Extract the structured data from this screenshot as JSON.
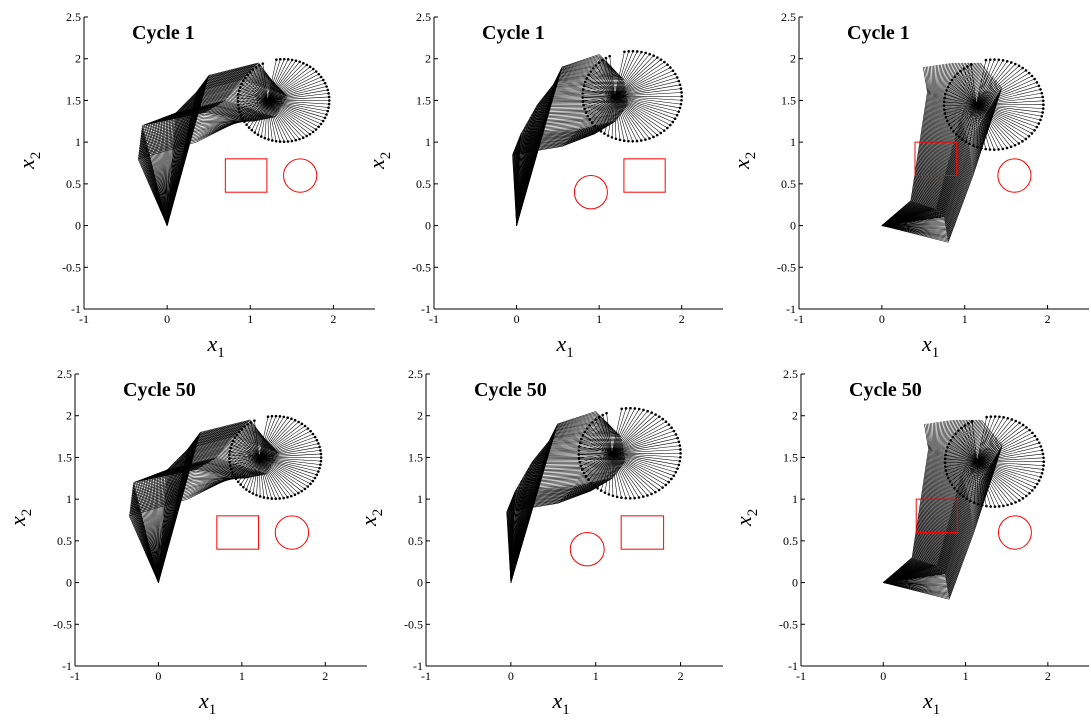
{
  "chart_data": [
    {
      "type": "line",
      "title": "Cycle 1",
      "xlabel": "x",
      "xlabel_sub": "1",
      "ylabel": "x",
      "ylabel_sub": "2",
      "xlim": [
        -1,
        2.5
      ],
      "ylim": [
        -1,
        2.5
      ],
      "xticks": [
        "-1",
        "0",
        "1",
        "2"
      ],
      "yticks": [
        "-1",
        "-0.5",
        "0",
        "0.5",
        "1",
        "1.5",
        "2",
        "2.5"
      ],
      "obstacle_color": "#ff0000",
      "obstacles": [
        {
          "shape": "square",
          "cx": 0.95,
          "cy": 0.6,
          "w": 0.5,
          "h": 0.4
        },
        {
          "shape": "circle",
          "cx": 1.6,
          "cy": 0.6,
          "r": 0.2
        }
      ],
      "links": [
        {
          "name": "link-1",
          "from": [
            [
              0.0,
              0.0
            ],
            [
              0.0,
              0.0
            ],
            [
              0.0,
              0.0
            ],
            [
              0.0,
              0.0
            ],
            [
              0.0,
              0.0
            ]
          ],
          "to": [
            [
              -0.35,
              0.8
            ],
            [
              -0.3,
              1.2
            ],
            [
              0.1,
              1.35
            ],
            [
              0.35,
              1.6
            ],
            [
              0.5,
              1.8
            ]
          ]
        },
        {
          "name": "link-2",
          "from": [
            [
              -0.35,
              0.8
            ],
            [
              -0.3,
              1.2
            ],
            [
              0.1,
              1.35
            ],
            [
              0.35,
              1.6
            ],
            [
              0.5,
              1.8
            ]
          ],
          "to": [
            [
              0.35,
              1.0
            ],
            [
              0.45,
              1.35
            ],
            [
              0.7,
              1.5
            ],
            [
              0.9,
              1.75
            ],
            [
              1.1,
              1.95
            ]
          ]
        },
        {
          "name": "link-3",
          "from": [
            [
              0.35,
              1.0
            ],
            [
              0.45,
              1.35
            ],
            [
              0.7,
              1.5
            ],
            [
              0.9,
              1.75
            ],
            [
              1.1,
              1.95
            ]
          ],
          "to": [
            [
              0.85,
              1.25
            ],
            [
              1.05,
              1.25
            ],
            [
              1.3,
              1.3
            ],
            [
              1.45,
              1.55
            ],
            [
              1.25,
              1.75
            ]
          ]
        }
      ],
      "end_circle": {
        "cx": 1.4,
        "cy": 1.5,
        "r": 0.55
      },
      "n_frames": 80
    },
    {
      "type": "line",
      "title": "Cycle 1",
      "xlabel": "x",
      "xlabel_sub": "1",
      "ylabel": "x",
      "ylabel_sub": "2",
      "xlim": [
        -1,
        2.5
      ],
      "ylim": [
        -1,
        2.5
      ],
      "xticks": [
        "-1",
        "0",
        "1",
        "2"
      ],
      "yticks": [
        "-1",
        "-0.5",
        "0",
        "0.5",
        "1",
        "1.5",
        "2",
        "2.5"
      ],
      "obstacle_color": "#ff0000",
      "obstacles": [
        {
          "shape": "circle",
          "cx": 0.9,
          "cy": 0.4,
          "r": 0.2
        },
        {
          "shape": "square",
          "cx": 1.55,
          "cy": 0.6,
          "w": 0.5,
          "h": 0.4
        }
      ],
      "links": [
        {
          "name": "link-1",
          "from": [
            [
              0.0,
              0.0
            ],
            [
              0.0,
              0.0
            ],
            [
              0.0,
              0.0
            ],
            [
              0.0,
              0.0
            ],
            [
              0.0,
              0.0
            ]
          ],
          "to": [
            [
              -0.05,
              0.85
            ],
            [
              0.05,
              1.1
            ],
            [
              0.25,
              1.45
            ],
            [
              0.45,
              1.7
            ],
            [
              0.55,
              1.9
            ]
          ]
        },
        {
          "name": "link-2",
          "from": [
            [
              -0.05,
              0.85
            ],
            [
              0.05,
              1.1
            ],
            [
              0.25,
              1.45
            ],
            [
              0.45,
              1.7
            ],
            [
              0.55,
              1.9
            ]
          ],
          "to": [
            [
              0.55,
              0.95
            ],
            [
              0.75,
              1.15
            ],
            [
              0.85,
              1.45
            ],
            [
              0.95,
              1.75
            ],
            [
              1.0,
              2.05
            ]
          ]
        },
        {
          "name": "link-3",
          "from": [
            [
              0.55,
              0.95
            ],
            [
              0.75,
              1.15
            ],
            [
              0.85,
              1.45
            ],
            [
              0.95,
              1.75
            ],
            [
              1.0,
              2.05
            ]
          ],
          "to": [
            [
              0.95,
              1.1
            ],
            [
              1.2,
              1.25
            ],
            [
              1.35,
              1.45
            ],
            [
              1.3,
              1.75
            ],
            [
              1.15,
              1.9
            ]
          ]
        }
      ],
      "end_circle": {
        "cx": 1.4,
        "cy": 1.55,
        "r": 0.6
      },
      "n_frames": 80
    },
    {
      "type": "line",
      "title": "Cycle 1",
      "xlabel": "x",
      "xlabel_sub": "1",
      "ylabel": "x",
      "ylabel_sub": "2",
      "xlim": [
        -1,
        2.5
      ],
      "ylim": [
        -1,
        2.5
      ],
      "xticks": [
        "-1",
        "0",
        "1",
        "2"
      ],
      "yticks": [
        "-1",
        "-0.5",
        "0",
        "0.5",
        "1",
        "1.5",
        "2",
        "2.5"
      ],
      "obstacle_color": "#ff0000",
      "obstacles": [
        {
          "shape": "square",
          "cx": 0.65,
          "cy": 0.8,
          "w": 0.5,
          "h": 0.4
        },
        {
          "shape": "circle",
          "cx": 1.6,
          "cy": 0.6,
          "r": 0.2
        }
      ],
      "links": [
        {
          "name": "link-1",
          "from": [
            [
              0.0,
              0.0
            ],
            [
              0.0,
              0.0
            ],
            [
              0.0,
              0.0
            ],
            [
              0.0,
              0.0
            ],
            [
              0.0,
              0.0
            ]
          ],
          "to": [
            [
              0.35,
              0.3
            ],
            [
              0.5,
              0.25
            ],
            [
              0.65,
              0.2
            ],
            [
              0.75,
              0.1
            ],
            [
              0.8,
              -0.2
            ]
          ]
        },
        {
          "name": "link-2",
          "from": [
            [
              0.35,
              0.3
            ],
            [
              0.5,
              0.25
            ],
            [
              0.65,
              0.2
            ],
            [
              0.75,
              0.1
            ],
            [
              0.8,
              -0.2
            ]
          ],
          "to": [
            [
              0.55,
              1.6
            ],
            [
              0.75,
              1.45
            ],
            [
              0.95,
              1.3
            ],
            [
              1.05,
              1.0
            ],
            [
              1.1,
              0.6
            ]
          ]
        },
        {
          "name": "link-3",
          "from": [
            [
              0.55,
              1.6
            ],
            [
              0.75,
              1.45
            ],
            [
              0.95,
              1.3
            ],
            [
              1.05,
              1.0
            ],
            [
              1.1,
              0.6
            ]
          ],
          "to": [
            [
              0.5,
              1.9
            ],
            [
              0.85,
              1.95
            ],
            [
              1.2,
              1.95
            ],
            [
              1.45,
              1.65
            ],
            [
              1.35,
              1.35
            ]
          ]
        }
      ],
      "end_circle": {
        "cx": 1.35,
        "cy": 1.45,
        "r": 0.6
      },
      "n_frames": 80
    },
    {
      "type": "line",
      "title": "Cycle 50",
      "xlabel": "x",
      "xlabel_sub": "1",
      "ylabel": "x",
      "ylabel_sub": "2",
      "xlim": [
        -1,
        2.5
      ],
      "ylim": [
        -1,
        2.5
      ],
      "xticks": [
        "-1",
        "0",
        "1",
        "2"
      ],
      "yticks": [
        "-1",
        "-0.5",
        "0",
        "0.5",
        "1",
        "1.5",
        "2",
        "2.5"
      ],
      "obstacle_color": "#ff0000",
      "obstacles": [
        {
          "shape": "square",
          "cx": 0.95,
          "cy": 0.6,
          "w": 0.5,
          "h": 0.4
        },
        {
          "shape": "circle",
          "cx": 1.6,
          "cy": 0.6,
          "r": 0.2
        }
      ],
      "links": [
        {
          "name": "link-1",
          "from": [
            [
              0.0,
              0.0
            ],
            [
              0.0,
              0.0
            ],
            [
              0.0,
              0.0
            ],
            [
              0.0,
              0.0
            ],
            [
              0.0,
              0.0
            ]
          ],
          "to": [
            [
              -0.35,
              0.8
            ],
            [
              -0.3,
              1.2
            ],
            [
              0.1,
              1.35
            ],
            [
              0.35,
              1.6
            ],
            [
              0.5,
              1.8
            ]
          ]
        },
        {
          "name": "link-2",
          "from": [
            [
              -0.35,
              0.8
            ],
            [
              -0.3,
              1.2
            ],
            [
              0.1,
              1.35
            ],
            [
              0.35,
              1.6
            ],
            [
              0.5,
              1.8
            ]
          ],
          "to": [
            [
              0.35,
              1.0
            ],
            [
              0.45,
              1.35
            ],
            [
              0.7,
              1.5
            ],
            [
              0.9,
              1.75
            ],
            [
              1.1,
              1.95
            ]
          ]
        },
        {
          "name": "link-3",
          "from": [
            [
              0.35,
              1.0
            ],
            [
              0.45,
              1.35
            ],
            [
              0.7,
              1.5
            ],
            [
              0.9,
              1.75
            ],
            [
              1.1,
              1.95
            ]
          ],
          "to": [
            [
              0.85,
              1.25
            ],
            [
              1.05,
              1.25
            ],
            [
              1.3,
              1.3
            ],
            [
              1.45,
              1.55
            ],
            [
              1.25,
              1.75
            ]
          ]
        }
      ],
      "end_circle": {
        "cx": 1.4,
        "cy": 1.5,
        "r": 0.55
      },
      "n_frames": 80
    },
    {
      "type": "line",
      "title": "Cycle 50",
      "xlabel": "x",
      "xlabel_sub": "1",
      "ylabel": "x",
      "ylabel_sub": "2",
      "xlim": [
        -1,
        2.5
      ],
      "ylim": [
        -1,
        2.5
      ],
      "xticks": [
        "-1",
        "0",
        "1",
        "2"
      ],
      "yticks": [
        "-1",
        "-0.5",
        "0",
        "0.5",
        "1",
        "1.5",
        "2",
        "2.5"
      ],
      "obstacle_color": "#ff0000",
      "obstacles": [
        {
          "shape": "circle",
          "cx": 0.9,
          "cy": 0.4,
          "r": 0.2
        },
        {
          "shape": "square",
          "cx": 1.55,
          "cy": 0.6,
          "w": 0.5,
          "h": 0.4
        }
      ],
      "links": [
        {
          "name": "link-1",
          "from": [
            [
              0.0,
              0.0
            ],
            [
              0.0,
              0.0
            ],
            [
              0.0,
              0.0
            ],
            [
              0.0,
              0.0
            ],
            [
              0.0,
              0.0
            ]
          ],
          "to": [
            [
              -0.05,
              0.85
            ],
            [
              0.05,
              1.1
            ],
            [
              0.25,
              1.45
            ],
            [
              0.45,
              1.7
            ],
            [
              0.55,
              1.9
            ]
          ]
        },
        {
          "name": "link-2",
          "from": [
            [
              -0.05,
              0.85
            ],
            [
              0.05,
              1.1
            ],
            [
              0.25,
              1.45
            ],
            [
              0.45,
              1.7
            ],
            [
              0.55,
              1.9
            ]
          ],
          "to": [
            [
              0.55,
              0.95
            ],
            [
              0.75,
              1.15
            ],
            [
              0.85,
              1.45
            ],
            [
              0.95,
              1.75
            ],
            [
              1.0,
              2.05
            ]
          ]
        },
        {
          "name": "link-3",
          "from": [
            [
              0.55,
              0.95
            ],
            [
              0.75,
              1.15
            ],
            [
              0.85,
              1.45
            ],
            [
              0.95,
              1.75
            ],
            [
              1.0,
              2.05
            ]
          ],
          "to": [
            [
              0.95,
              1.1
            ],
            [
              1.2,
              1.25
            ],
            [
              1.35,
              1.45
            ],
            [
              1.3,
              1.75
            ],
            [
              1.15,
              1.9
            ]
          ]
        }
      ],
      "end_circle": {
        "cx": 1.4,
        "cy": 1.55,
        "r": 0.6
      },
      "n_frames": 80
    },
    {
      "type": "line",
      "title": "Cycle 50",
      "xlabel": "x",
      "xlabel_sub": "1",
      "ylabel": "x",
      "ylabel_sub": "2",
      "xlim": [
        -1,
        2.5
      ],
      "ylim": [
        -1,
        2.5
      ],
      "xticks": [
        "-1",
        "0",
        "1",
        "2"
      ],
      "yticks": [
        "-1",
        "-0.5",
        "0",
        "0.5",
        "1",
        "1.5",
        "2",
        "2.5"
      ],
      "obstacle_color": "#ff0000",
      "obstacles": [
        {
          "shape": "square",
          "cx": 0.65,
          "cy": 0.8,
          "w": 0.5,
          "h": 0.4
        },
        {
          "shape": "circle",
          "cx": 1.6,
          "cy": 0.6,
          "r": 0.2
        }
      ],
      "links": [
        {
          "name": "link-1",
          "from": [
            [
              0.0,
              0.0
            ],
            [
              0.0,
              0.0
            ],
            [
              0.0,
              0.0
            ],
            [
              0.0,
              0.0
            ],
            [
              0.0,
              0.0
            ]
          ],
          "to": [
            [
              0.35,
              0.3
            ],
            [
              0.5,
              0.25
            ],
            [
              0.65,
              0.2
            ],
            [
              0.75,
              0.1
            ],
            [
              0.8,
              -0.2
            ]
          ]
        },
        {
          "name": "link-2",
          "from": [
            [
              0.35,
              0.3
            ],
            [
              0.5,
              0.25
            ],
            [
              0.65,
              0.2
            ],
            [
              0.75,
              0.1
            ],
            [
              0.8,
              -0.2
            ]
          ],
          "to": [
            [
              0.55,
              1.6
            ],
            [
              0.75,
              1.45
            ],
            [
              0.95,
              1.3
            ],
            [
              1.05,
              1.0
            ],
            [
              1.1,
              0.6
            ]
          ]
        },
        {
          "name": "link-3",
          "from": [
            [
              0.55,
              1.6
            ],
            [
              0.75,
              1.45
            ],
            [
              0.95,
              1.3
            ],
            [
              1.05,
              1.0
            ],
            [
              1.1,
              0.6
            ]
          ],
          "to": [
            [
              0.5,
              1.9
            ],
            [
              0.85,
              1.95
            ],
            [
              1.2,
              1.95
            ],
            [
              1.45,
              1.65
            ],
            [
              1.35,
              1.35
            ]
          ]
        }
      ],
      "end_circle": {
        "cx": 1.35,
        "cy": 1.45,
        "r": 0.6
      },
      "n_frames": 80
    }
  ]
}
